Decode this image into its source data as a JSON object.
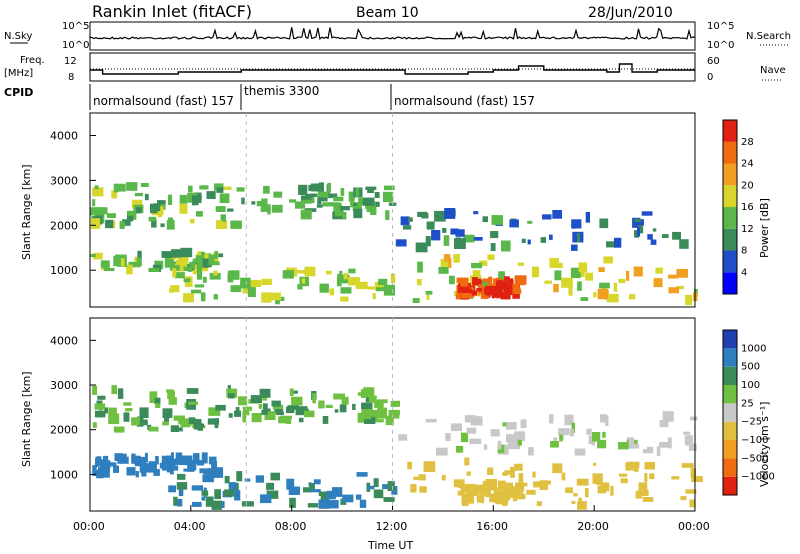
{
  "header": {
    "title": "Rankin Inlet (fitACF)",
    "beam": "Beam 10",
    "date": "28/Jun/2010"
  },
  "top_panels": {
    "nsky_label": "N.Sky",
    "nsearch_label": "N.Search",
    "freq_label_1": "Freq.",
    "freq_label_2": "[MHz]",
    "nave_label": "Nave",
    "cpid_label": "CPID",
    "noise_ticks": [
      "10^5",
      "10^0"
    ],
    "noise_ticks_right": [
      "10^5",
      "10^0"
    ],
    "freq_ticks": [
      "12",
      "8"
    ],
    "nave_ticks": [
      "60",
      "0"
    ],
    "cpid_segments": [
      {
        "label": "normalsound (fast) 157",
        "start_hour": 0
      },
      {
        "label": "themis 3300",
        "start_hour": 6.2
      },
      {
        "label": "normalsound (fast) 157",
        "start_hour": 12
      }
    ]
  },
  "power_panel": {
    "ylabel": "Slant Range [km]",
    "yticks": [
      "1000",
      "2000",
      "3000",
      "4000"
    ],
    "colorbar_label": "Power [dB]",
    "colorbar_ticks": [
      "28",
      "24",
      "20",
      "16",
      "12",
      "8",
      "4"
    ],
    "colors": [
      "#0000ff",
      "#1f4fc8",
      "#3b8a5a",
      "#5ab84a",
      "#d7d62a",
      "#f0a020",
      "#f06a10",
      "#e02010"
    ]
  },
  "velocity_panel": {
    "ylabel": "Slant Range [km]",
    "yticks": [
      "1000",
      "2000",
      "3000",
      "4000"
    ],
    "colorbar_label": "Velocity [m s⁻¹]",
    "colorbar_ticks": [
      "1000",
      "500",
      "100",
      "25",
      "−25",
      "−100",
      "−500",
      "−1000"
    ],
    "colors": [
      "#2040b0",
      "#2f7fbf",
      "#3b8a5a",
      "#6fc040",
      "#c8c8c8",
      "#e0c040",
      "#f0a020",
      "#f06a10",
      "#e02010"
    ]
  },
  "xaxis": {
    "label": "Time UT",
    "ticks": [
      "00:00",
      "04:00",
      "08:00",
      "12:00",
      "16:00",
      "20:00",
      "00:00"
    ]
  },
  "chart_data": {
    "type": "heatmap",
    "title": "Rankin Inlet (fitACF)",
    "xlabel": "Time UT",
    "ylabel": "Slant Range [km]",
    "xlim": [
      0,
      24
    ],
    "ylim": [
      180,
      4500
    ],
    "panels": [
      "Power [dB]",
      "Velocity [m s⁻¹]"
    ],
    "scatter_bands": [
      {
        "t0": 0.0,
        "t1": 6.0,
        "r0": 2000,
        "r1": 2900,
        "power": 14,
        "vel": 25
      },
      {
        "t0": 6.0,
        "t1": 12.0,
        "r0": 2200,
        "r1": 2850,
        "power": 12,
        "vel": 20
      },
      {
        "t0": 12.0,
        "t1": 24.0,
        "r0": 1500,
        "r1": 2300,
        "power": 9,
        "vel": -50
      },
      {
        "t0": 0.0,
        "t1": 5.0,
        "r0": 1000,
        "r1": 1400,
        "power": 14,
        "vel": 150
      },
      {
        "t0": 3.0,
        "t1": 12.0,
        "r0": 300,
        "r1": 1000,
        "power": 16,
        "vel": 100
      },
      {
        "t0": 12.0,
        "t1": 24.0,
        "r0": 300,
        "r1": 1300,
        "power": 18,
        "vel": -300
      },
      {
        "t0": 14.5,
        "t1": 17.0,
        "r0": 400,
        "r1": 800,
        "power": 28,
        "vel": -400
      }
    ]
  }
}
